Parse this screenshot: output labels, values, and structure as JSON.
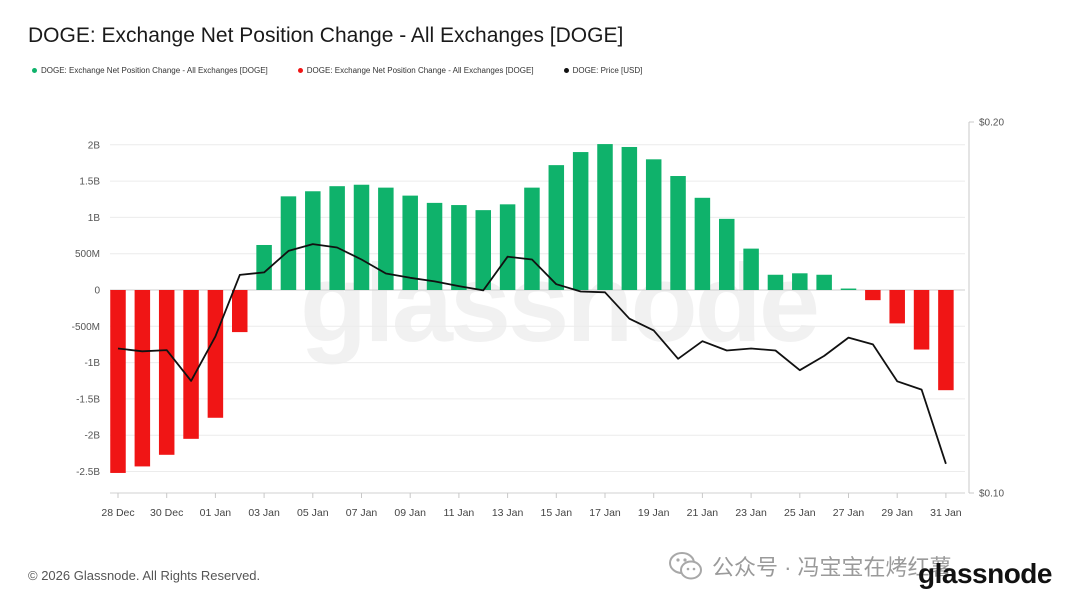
{
  "title": "DOGE: Exchange Net Position Change - All Exchanges [DOGE]",
  "legend": [
    {
      "label": "DOGE: Exchange Net Position Change - All Exchanges [DOGE]",
      "color": "#0fb26b"
    },
    {
      "label": "DOGE: Exchange Net Position Change - All Exchanges [DOGE]",
      "color": "#f01515"
    },
    {
      "label": "DOGE: Price [USD]",
      "color": "#111111"
    }
  ],
  "footer": {
    "copyright": "© 2026 Glassnode. All Rights Reserved.",
    "wechat_text": "公众号 · 冯宝宝在烤红薯",
    "brand": "glassnode",
    "watermark": "glassnode"
  },
  "chart_data": {
    "type": "bar",
    "categories": [
      "28 Dec",
      "29 Dec",
      "30 Dec",
      "31 Dec",
      "01 Jan",
      "02 Jan",
      "03 Jan",
      "04 Jan",
      "05 Jan",
      "06 Jan",
      "07 Jan",
      "08 Jan",
      "09 Jan",
      "10 Jan",
      "11 Jan",
      "12 Jan",
      "13 Jan",
      "14 Jan",
      "15 Jan",
      "16 Jan",
      "17 Jan",
      "18 Jan",
      "19 Jan",
      "20 Jan",
      "21 Jan",
      "22 Jan",
      "23 Jan",
      "24 Jan",
      "25 Jan",
      "26 Jan",
      "27 Jan",
      "28 Jan",
      "29 Jan",
      "30 Jan",
      "31 Jan"
    ],
    "x_tick_labels": [
      "28 Dec",
      "30 Dec",
      "01 Jan",
      "03 Jan",
      "05 Jan",
      "07 Jan",
      "09 Jan",
      "11 Jan",
      "13 Jan",
      "15 Jan",
      "17 Jan",
      "19 Jan",
      "21 Jan",
      "23 Jan",
      "25 Jan",
      "27 Jan",
      "29 Jan",
      "31 Jan"
    ],
    "series": [
      {
        "name": "DOGE: Exchange Net Position Change - All Exchanges [DOGE]",
        "axis": "left",
        "values": [
          -2520000000.0,
          -2430000000.0,
          -2270000000.0,
          -2050000000.0,
          -1760000000.0,
          -580000000.0,
          620000000.0,
          1290000000.0,
          1360000000.0,
          1430000000.0,
          1450000000.0,
          1410000000.0,
          1300000000.0,
          1200000000.0,
          1170000000.0,
          1100000000.0,
          1180000000.0,
          1410000000.0,
          1720000000.0,
          1900000000.0,
          2010000000.0,
          1970000000.0,
          1800000000.0,
          1570000000.0,
          1270000000.0,
          980000000.0,
          570000000.0,
          210000000.0,
          230000000.0,
          210000000.0,
          20000000.0,
          -140000000.0,
          -460000000.0,
          -820000000.0,
          -1380000000.0
        ],
        "positive_color": "#0fb26b",
        "negative_color": "#f01515"
      },
      {
        "name": "DOGE: Price [USD]",
        "axis": "right",
        "type": "line",
        "color": "#111111",
        "values": [
          0.131,
          0.1303,
          0.1306,
          0.1233,
          0.134,
          0.1503,
          0.151,
          0.1572,
          0.1592,
          0.1582,
          0.1547,
          0.1507,
          0.1495,
          0.1485,
          0.1472,
          0.146,
          0.1555,
          0.1547,
          0.1477,
          0.1457,
          0.1455,
          0.1385,
          0.1355,
          0.1285,
          0.1328,
          0.1305,
          0.131,
          0.1305,
          0.1258,
          0.1292,
          0.1337,
          0.132,
          0.1232,
          0.1213,
          0.1056
        ]
      }
    ],
    "y_left": {
      "ticks": [
        2000000000.0,
        1500000000.0,
        1000000000.0,
        500000000.0,
        0,
        -500000000.0,
        -1000000000.0,
        -1500000000.0,
        -2000000000.0,
        -2500000000.0
      ],
      "tick_labels": [
        "2B",
        "1.5B",
        "1B",
        "500M",
        "0",
        "-500M",
        "-1B",
        "-1.5B",
        "-2B",
        "-2.5B"
      ]
    },
    "y_right": {
      "range": [
        0.1,
        0.2
      ],
      "tick_labels": [
        "$0.20",
        "$0.10"
      ],
      "scale": "log"
    },
    "grid": true
  }
}
